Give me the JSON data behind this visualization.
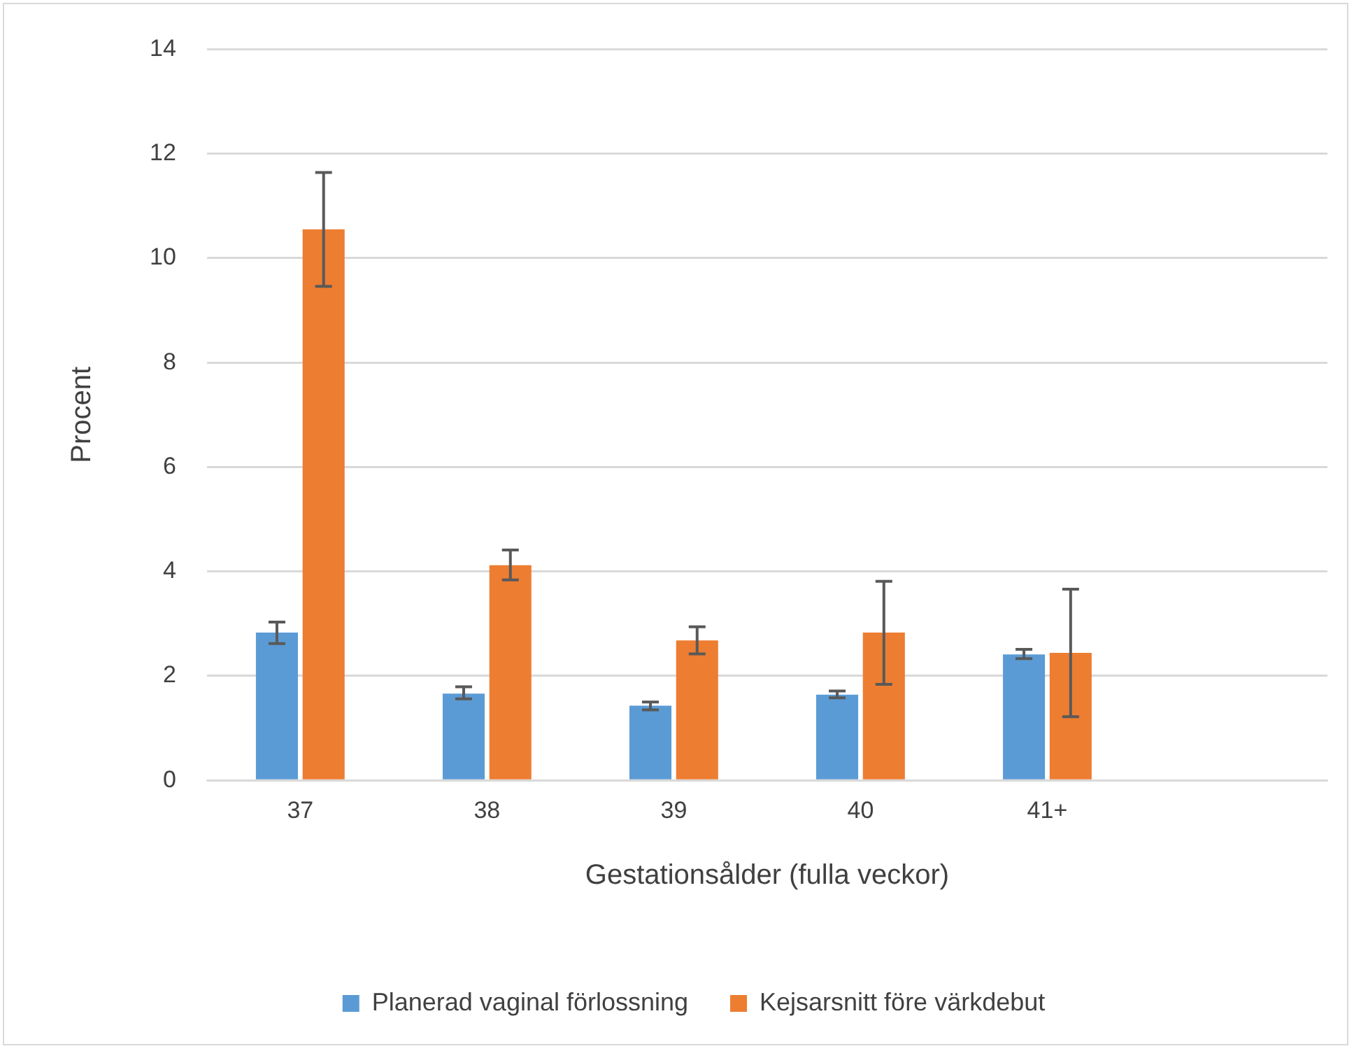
{
  "chart_data": {
    "type": "bar",
    "xlabel": "Gestationsålder (fulla veckor)",
    "ylabel": "Procent",
    "categories": [
      "37",
      "38",
      "39",
      "40",
      "41+",
      null
    ],
    "series": [
      {
        "name": "Planerad vaginal förlossning",
        "color": "#5b9bd5",
        "values": [
          2.83,
          1.66,
          1.43,
          1.64,
          2.41,
          null
        ],
        "errors": [
          [
            2.62,
            3.03
          ],
          [
            1.56,
            1.79
          ],
          [
            1.35,
            1.5
          ],
          [
            1.58,
            1.71
          ],
          [
            2.33,
            2.51
          ],
          null
        ]
      },
      {
        "name": "Kejsarsnitt före värkdebut",
        "color": "#ed7d31",
        "values": [
          10.55,
          4.12,
          2.68,
          2.83,
          2.44,
          null
        ],
        "errors": [
          [
            9.46,
            11.64
          ],
          [
            3.84,
            4.41
          ],
          [
            2.42,
            2.94
          ],
          [
            1.84,
            3.81
          ],
          [
            1.22,
            3.66
          ],
          null
        ]
      }
    ],
    "ylim": [
      0,
      14
    ],
    "yticks": [
      0,
      2,
      4,
      6,
      8,
      10,
      12,
      14
    ],
    "grid": "y",
    "legend": "bottom"
  }
}
